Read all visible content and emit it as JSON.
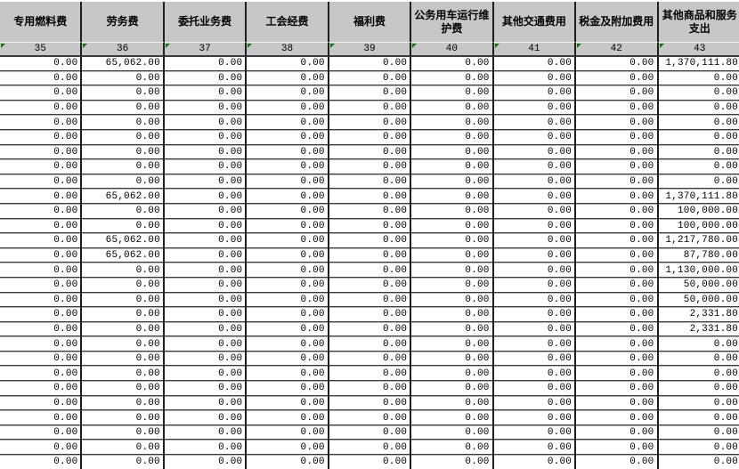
{
  "table": {
    "columns": [
      {
        "number": "35",
        "label": "专用燃料费"
      },
      {
        "number": "36",
        "label": "劳务费"
      },
      {
        "number": "37",
        "label": "委托业务费"
      },
      {
        "number": "38",
        "label": "工会经费"
      },
      {
        "number": "39",
        "label": "福利费"
      },
      {
        "number": "40",
        "label": "公务用车运行维护费"
      },
      {
        "number": "41",
        "label": "其他交通费用"
      },
      {
        "number": "42",
        "label": "税金及附加费用"
      },
      {
        "number": "43",
        "label": "其他商品和服务支出"
      }
    ],
    "rows": [
      [
        "0.00",
        "65,062.00",
        "0.00",
        "0.00",
        "0.00",
        "0.00",
        "0.00",
        "0.00",
        "1,370,111.80"
      ],
      [
        "0.00",
        "0.00",
        "0.00",
        "0.00",
        "0.00",
        "0.00",
        "0.00",
        "0.00",
        "0.00"
      ],
      [
        "0.00",
        "0.00",
        "0.00",
        "0.00",
        "0.00",
        "0.00",
        "0.00",
        "0.00",
        "0.00"
      ],
      [
        "0.00",
        "0.00",
        "0.00",
        "0.00",
        "0.00",
        "0.00",
        "0.00",
        "0.00",
        "0.00"
      ],
      [
        "0.00",
        "0.00",
        "0.00",
        "0.00",
        "0.00",
        "0.00",
        "0.00",
        "0.00",
        "0.00"
      ],
      [
        "0.00",
        "0.00",
        "0.00",
        "0.00",
        "0.00",
        "0.00",
        "0.00",
        "0.00",
        "0.00"
      ],
      [
        "0.00",
        "0.00",
        "0.00",
        "0.00",
        "0.00",
        "0.00",
        "0.00",
        "0.00",
        "0.00"
      ],
      [
        "0.00",
        "0.00",
        "0.00",
        "0.00",
        "0.00",
        "0.00",
        "0.00",
        "0.00",
        "0.00"
      ],
      [
        "0.00",
        "0.00",
        "0.00",
        "0.00",
        "0.00",
        "0.00",
        "0.00",
        "0.00",
        "0.00"
      ],
      [
        "0.00",
        "65,062.00",
        "0.00",
        "0.00",
        "0.00",
        "0.00",
        "0.00",
        "0.00",
        "1,370,111.80"
      ],
      [
        "0.00",
        "0.00",
        "0.00",
        "0.00",
        "0.00",
        "0.00",
        "0.00",
        "0.00",
        "100,000.00"
      ],
      [
        "0.00",
        "0.00",
        "0.00",
        "0.00",
        "0.00",
        "0.00",
        "0.00",
        "0.00",
        "100,000.00"
      ],
      [
        "0.00",
        "65,062.00",
        "0.00",
        "0.00",
        "0.00",
        "0.00",
        "0.00",
        "0.00",
        "1,217,780.00"
      ],
      [
        "0.00",
        "65,062.00",
        "0.00",
        "0.00",
        "0.00",
        "0.00",
        "0.00",
        "0.00",
        "87,780.00"
      ],
      [
        "0.00",
        "0.00",
        "0.00",
        "0.00",
        "0.00",
        "0.00",
        "0.00",
        "0.00",
        "1,130,000.00"
      ],
      [
        "0.00",
        "0.00",
        "0.00",
        "0.00",
        "0.00",
        "0.00",
        "0.00",
        "0.00",
        "50,000.00"
      ],
      [
        "0.00",
        "0.00",
        "0.00",
        "0.00",
        "0.00",
        "0.00",
        "0.00",
        "0.00",
        "50,000.00"
      ],
      [
        "0.00",
        "0.00",
        "0.00",
        "0.00",
        "0.00",
        "0.00",
        "0.00",
        "0.00",
        "2,331.80"
      ],
      [
        "0.00",
        "0.00",
        "0.00",
        "0.00",
        "0.00",
        "0.00",
        "0.00",
        "0.00",
        "2,331.80"
      ],
      [
        "0.00",
        "0.00",
        "0.00",
        "0.00",
        "0.00",
        "0.00",
        "0.00",
        "0.00",
        "0.00"
      ],
      [
        "0.00",
        "0.00",
        "0.00",
        "0.00",
        "0.00",
        "0.00",
        "0.00",
        "0.00",
        "0.00"
      ],
      [
        "0.00",
        "0.00",
        "0.00",
        "0.00",
        "0.00",
        "0.00",
        "0.00",
        "0.00",
        "0.00"
      ],
      [
        "0.00",
        "0.00",
        "0.00",
        "0.00",
        "0.00",
        "0.00",
        "0.00",
        "0.00",
        "0.00"
      ],
      [
        "0.00",
        "0.00",
        "0.00",
        "0.00",
        "0.00",
        "0.00",
        "0.00",
        "0.00",
        "0.00"
      ],
      [
        "0.00",
        "0.00",
        "0.00",
        "0.00",
        "0.00",
        "0.00",
        "0.00",
        "0.00",
        "0.00"
      ],
      [
        "0.00",
        "0.00",
        "0.00",
        "0.00",
        "0.00",
        "0.00",
        "0.00",
        "0.00",
        "0.00"
      ],
      [
        "0.00",
        "0.00",
        "0.00",
        "0.00",
        "0.00",
        "0.00",
        "0.00",
        "0.00",
        "0.00"
      ],
      [
        "0.00",
        "0.00",
        "0.00",
        "0.00",
        "0.00",
        "0.00",
        "0.00",
        "0.00",
        "0.00"
      ]
    ]
  },
  "icons": {
    "error_indicator": "green corner triangle (cell error marker)"
  },
  "colors": {
    "header_bg": "#c7c7c7",
    "cell_bg": "#ffffff",
    "grid_vertical": "#1f1f1f",
    "row_border_dark": "#3a3a3a",
    "row_border_light": "#b4b4b4",
    "header_gridline": "#f2f2f2",
    "error_indicator": "#008000"
  }
}
